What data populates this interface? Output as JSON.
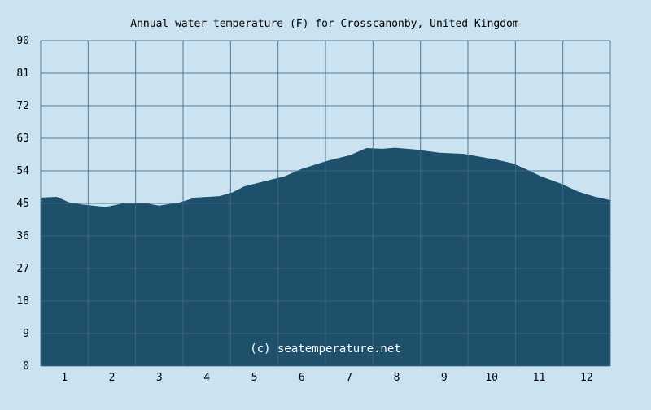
{
  "chart_data": {
    "type": "area",
    "title": "Annual water temperature (F) for Crosscanonby, United Kingdom",
    "xlabel": "",
    "ylabel": "",
    "xlim": [
      0.5,
      12.5
    ],
    "ylim": [
      0,
      90
    ],
    "x_ticks": [
      "1",
      "2",
      "3",
      "4",
      "5",
      "6",
      "7",
      "8",
      "9",
      "10",
      "11",
      "12"
    ],
    "y_ticks": [
      "0",
      "9",
      "18",
      "27",
      "36",
      "45",
      "54",
      "63",
      "72",
      "81",
      "90"
    ],
    "grid": true,
    "watermark": "(c) seatemperature.net",
    "colors": {
      "background": "#cbe3f0",
      "fill": "#1e4f6b",
      "grid": "#3e6884"
    },
    "points": [
      [
        0.5,
        46.6
      ],
      [
        0.84,
        46.8
      ],
      [
        1.1,
        45.3
      ],
      [
        1.36,
        44.7
      ],
      [
        1.87,
        44.0
      ],
      [
        2.21,
        44.9
      ],
      [
        2.73,
        45.0
      ],
      [
        2.99,
        44.4
      ],
      [
        3.41,
        45.2
      ],
      [
        3.76,
        46.6
      ],
      [
        4.27,
        47.0
      ],
      [
        4.53,
        48.0
      ],
      [
        4.79,
        49.7
      ],
      [
        5.21,
        51.1
      ],
      [
        5.64,
        52.5
      ],
      [
        5.99,
        54.5
      ],
      [
        6.5,
        56.6
      ],
      [
        6.67,
        57.2
      ],
      [
        7.01,
        58.3
      ],
      [
        7.36,
        60.3
      ],
      [
        7.7,
        60.1
      ],
      [
        7.96,
        60.4
      ],
      [
        8.39,
        59.9
      ],
      [
        8.9,
        59.0
      ],
      [
        9.41,
        58.7
      ],
      [
        9.76,
        57.9
      ],
      [
        10.1,
        57.1
      ],
      [
        10.44,
        56.1
      ],
      [
        10.7,
        54.6
      ],
      [
        11.04,
        52.5
      ],
      [
        11.47,
        50.4
      ],
      [
        11.81,
        48.3
      ],
      [
        12.16,
        46.9
      ],
      [
        12.5,
        45.9
      ]
    ]
  }
}
